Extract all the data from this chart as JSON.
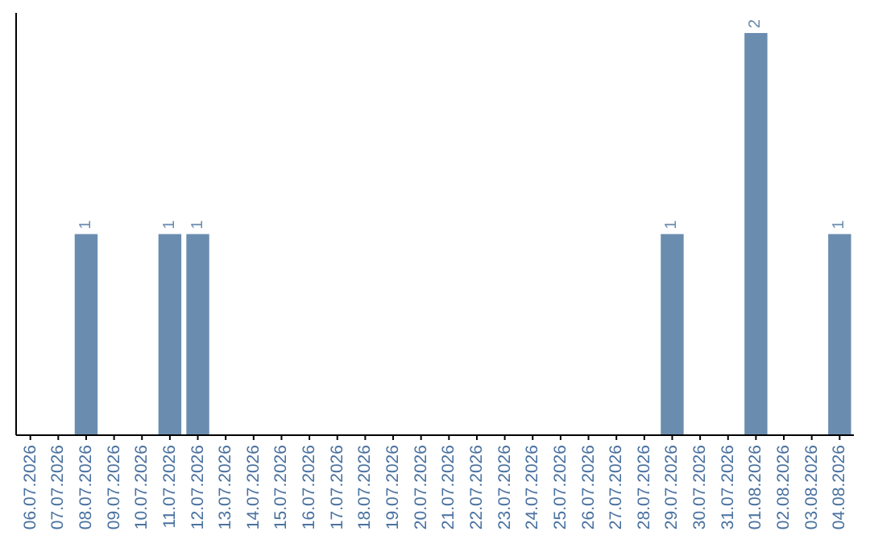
{
  "chart_data": {
    "type": "bar",
    "categories": [
      "06.07.2026",
      "07.07.2026",
      "08.07.2026",
      "09.07.2026",
      "10.07.2026",
      "11.07.2026",
      "12.07.2026",
      "13.07.2026",
      "14.07.2026",
      "15.07.2026",
      "16.07.2026",
      "17.07.2026",
      "18.07.2026",
      "19.07.2026",
      "20.07.2026",
      "21.07.2026",
      "22.07.2026",
      "23.07.2026",
      "24.07.2026",
      "25.07.2026",
      "26.07.2026",
      "27.07.2026",
      "28.07.2026",
      "29.07.2026",
      "30.07.2026",
      "31.07.2026",
      "01.08.2026",
      "02.08.2026",
      "03.08.2026",
      "04.08.2026"
    ],
    "values": [
      0,
      0,
      1,
      0,
      0,
      1,
      1,
      0,
      0,
      0,
      0,
      0,
      0,
      0,
      0,
      0,
      0,
      0,
      0,
      0,
      0,
      0,
      0,
      1,
      0,
      0,
      2,
      0,
      0,
      1
    ],
    "value_labels": [
      null,
      null,
      "1",
      null,
      null,
      "1",
      "1",
      null,
      null,
      null,
      null,
      null,
      null,
      null,
      null,
      null,
      null,
      null,
      null,
      null,
      null,
      null,
      null,
      "1",
      null,
      null,
      "2",
      null,
      null,
      "1"
    ],
    "color": "#6a8caf"
  }
}
